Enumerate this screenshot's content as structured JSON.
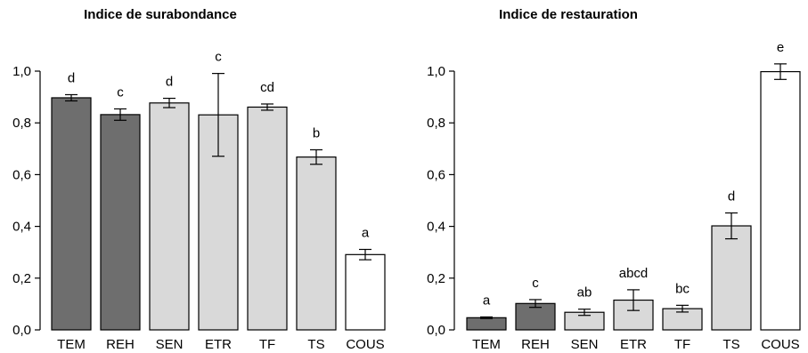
{
  "colors": {
    "dark": "#6e6e6e",
    "light": "#d9d9d9",
    "white": "#ffffff",
    "stroke": "#000000"
  },
  "chart_data": [
    {
      "type": "bar",
      "title": "Indice de surabondance",
      "xlabel": "",
      "ylabel": "",
      "ylim": [
        0,
        1.0
      ],
      "yticks": [
        "0,0",
        "0,2",
        "0,4",
        "0,6",
        "0,8",
        "1,0"
      ],
      "categories": [
        "TEM",
        "REH",
        "SEN",
        "ETR",
        "TF",
        "TS",
        "COUS"
      ],
      "values": [
        0.897,
        0.832,
        0.877,
        0.831,
        0.861,
        0.668,
        0.291
      ],
      "errors": [
        0.012,
        0.022,
        0.018,
        0.16,
        0.012,
        0.028,
        0.02
      ],
      "significance": [
        "d",
        "c",
        "d",
        "c",
        "cd",
        "b",
        "a"
      ],
      "fill": [
        "dark",
        "dark",
        "light",
        "light",
        "light",
        "light",
        "white"
      ]
    },
    {
      "type": "bar",
      "title": "Indice de restauration",
      "xlabel": "",
      "ylabel": "",
      "ylim": [
        0,
        1.0
      ],
      "yticks": [
        "0,0",
        "0,2",
        "0,4",
        "0,6",
        "0,8",
        "1,0"
      ],
      "categories": [
        "TEM",
        "REH",
        "SEN",
        "ETR",
        "TF",
        "TS",
        "COUS"
      ],
      "values": [
        0.047,
        0.102,
        0.068,
        0.115,
        0.082,
        0.402,
        0.998
      ],
      "errors": [
        0.003,
        0.015,
        0.012,
        0.04,
        0.013,
        0.05,
        0.03
      ],
      "significance": [
        "a",
        "c",
        "ab",
        "abcd",
        "bc",
        "d",
        "e"
      ],
      "fill": [
        "dark",
        "dark",
        "light",
        "light",
        "light",
        "light",
        "white"
      ]
    }
  ]
}
